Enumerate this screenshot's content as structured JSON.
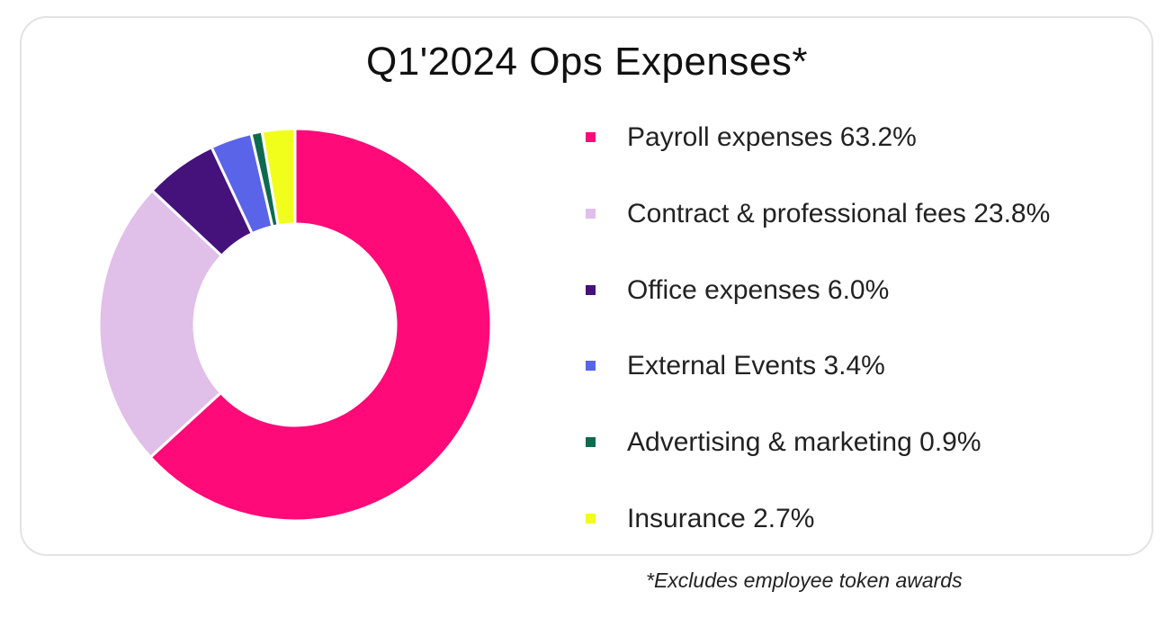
{
  "chart_data": {
    "type": "pie",
    "variant": "donut",
    "title": "Q1'2024 Ops Expenses*",
    "legend_position": "right",
    "series": [
      {
        "label": "Payroll expenses 63.2%",
        "name": "Payroll expenses",
        "value": 63.2,
        "color": "#ff0a78"
      },
      {
        "label": "Contract & professional fees 23.8%",
        "name": "Contract & professional fees",
        "value": 23.8,
        "color": "#e0bfe9"
      },
      {
        "label": "Office expenses 6.0%",
        "name": "Office expenses",
        "value": 6.0,
        "color": "#45127c"
      },
      {
        "label": "External Events 3.4%",
        "name": "External Events",
        "value": 3.4,
        "color": "#5a64e8"
      },
      {
        "label": "Advertising & marketing 0.9%",
        "name": "Advertising & marketing",
        "value": 0.9,
        "color": "#0c6b4f"
      },
      {
        "label": "Insurance 2.7%",
        "name": "Insurance",
        "value": 2.7,
        "color": "#f1fe1c"
      }
    ],
    "slice_order": "clockwise from top",
    "footnote": "*Excludes employee token awards"
  }
}
